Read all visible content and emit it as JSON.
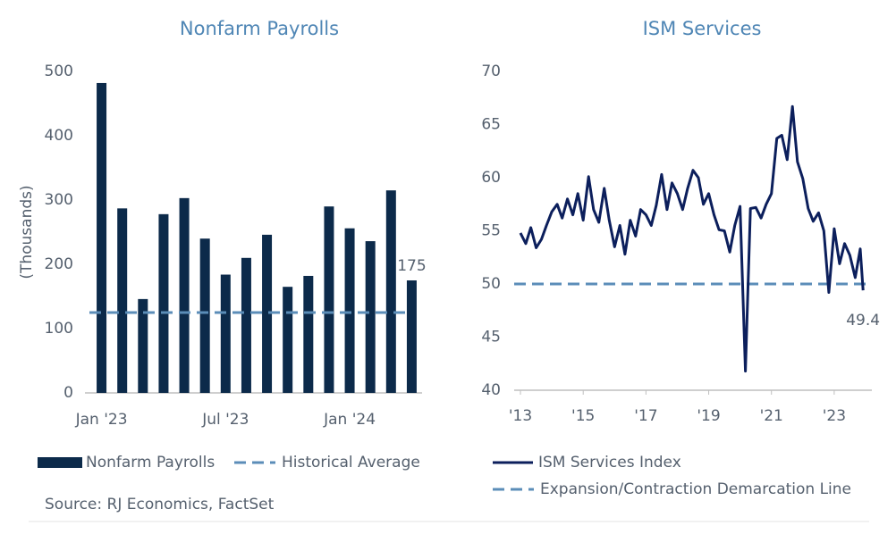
{
  "chart_data": [
    {
      "type": "bar",
      "title": "Nonfarm Payrolls",
      "y_label": "(Thousands)",
      "categories": [
        "Jan '23",
        null,
        null,
        null,
        null,
        null,
        "Jul '23",
        null,
        null,
        null,
        null,
        null,
        "Jan '24",
        null,
        null,
        null
      ],
      "series": [
        {
          "name": "Nonfarm Payrolls",
          "color": "#0c2a4a",
          "values": [
            482,
            287,
            146,
            278,
            303,
            240,
            184,
            210,
            246,
            165,
            182,
            290,
            256,
            236,
            315,
            175
          ]
        }
      ],
      "reference_line": {
        "name": "Historical Average",
        "value": 125,
        "color": "#5b8db8"
      },
      "ylim": [
        0,
        500
      ],
      "yticks": [
        0,
        100,
        200,
        300,
        400,
        500
      ],
      "data_label": "last",
      "grid": false
    },
    {
      "type": "line",
      "title": "ISM Services",
      "x": [
        2013,
        2013.17,
        2013.33,
        2013.5,
        2013.67,
        2013.83,
        2014,
        2014.17,
        2014.33,
        2014.5,
        2014.67,
        2014.83,
        2015,
        2015.17,
        2015.33,
        2015.5,
        2015.67,
        2015.83,
        2016,
        2016.17,
        2016.33,
        2016.5,
        2016.67,
        2016.83,
        2017,
        2017.17,
        2017.33,
        2017.5,
        2017.67,
        2017.83,
        2018,
        2018.17,
        2018.33,
        2018.5,
        2018.67,
        2018.83,
        2019,
        2019.17,
        2019.33,
        2019.5,
        2019.67,
        2019.83,
        2020,
        2020.17,
        2020.33,
        2020.5,
        2020.67,
        2020.83,
        2021,
        2021.17,
        2021.33,
        2021.5,
        2021.67,
        2021.83,
        2022,
        2022.17,
        2022.33,
        2022.5,
        2022.67,
        2022.83,
        2023,
        2023.17,
        2023.33,
        2023.5,
        2023.67,
        2023.83,
        2023.92
      ],
      "series": [
        {
          "name": "ISM Services Index",
          "color": "#0c1f5c",
          "values": [
            54.8,
            53.8,
            55.3,
            53.4,
            54.2,
            55.5,
            56.8,
            57.5,
            56.2,
            58.0,
            56.5,
            58.5,
            56.0,
            60.1,
            57.0,
            55.8,
            59.0,
            56.0,
            53.5,
            55.5,
            52.8,
            56.0,
            54.5,
            57.0,
            56.5,
            55.5,
            57.4,
            60.3,
            57.0,
            59.5,
            58.5,
            57.0,
            59.0,
            60.7,
            60.0,
            57.5,
            58.5,
            56.5,
            55.1,
            55.0,
            53.0,
            55.5,
            57.3,
            41.8,
            57.1,
            57.2,
            56.2,
            57.5,
            58.5,
            63.7,
            64.0,
            61.7,
            66.7,
            61.5,
            59.9,
            57.1,
            55.9,
            56.7,
            55.0,
            49.2,
            55.2,
            51.9,
            53.8,
            52.7,
            50.6,
            53.3,
            49.4
          ]
        }
      ],
      "reference_line": {
        "name": "Expansion/Contraction Demarcation Line",
        "value": 50,
        "color": "#5b8db8"
      },
      "xlim": [
        2012.8,
        2024.2
      ],
      "xticks": [
        {
          "value": 2013,
          "label": "'13"
        },
        {
          "value": 2015,
          "label": "'15"
        },
        {
          "value": 2017,
          "label": "'17"
        },
        {
          "value": 2019,
          "label": "'19"
        },
        {
          "value": 2021,
          "label": "'21"
        },
        {
          "value": 2023,
          "label": "'23"
        }
      ],
      "ylim": [
        40,
        70
      ],
      "yticks": [
        40,
        45,
        50,
        55,
        60,
        65,
        70
      ],
      "data_label": "last",
      "grid": false
    }
  ],
  "source": "Source: RJ Economics, FactSet"
}
